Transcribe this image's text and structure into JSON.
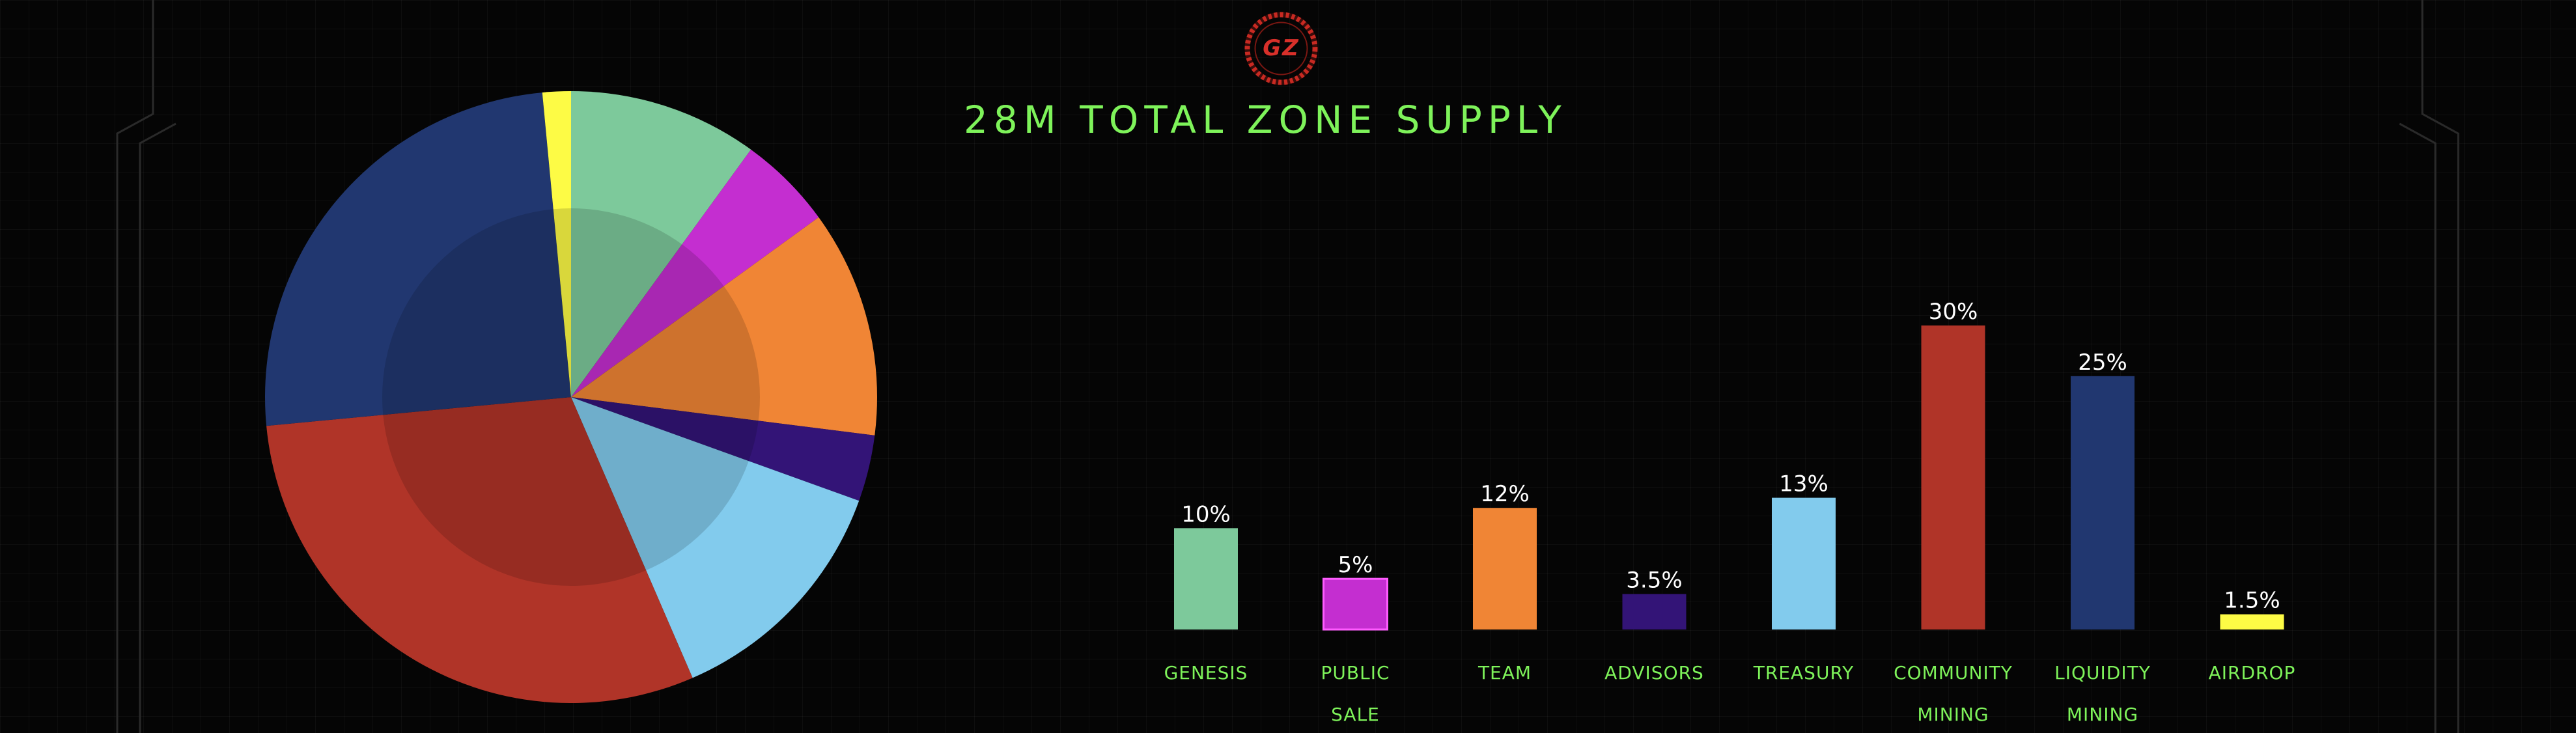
{
  "title": "28M TOTAL ZONE SUPPLY",
  "logo": {
    "text": "GZ",
    "color": "#d8302a"
  },
  "colors": {
    "background": "#050505",
    "title": "#7ef35a",
    "value_label": "#ffffff",
    "category_label": "#7ef35a"
  },
  "chart_data": [
    {
      "type": "pie",
      "slices": [
        {
          "name": "GENESIS",
          "value": 10,
          "color": "#7dc99b"
        },
        {
          "name": "PUBLIC SALE",
          "value": 5,
          "color": "#c42ed0"
        },
        {
          "name": "TEAM",
          "value": 12,
          "color": "#f08535"
        },
        {
          "name": "ADVISORS",
          "value": 3.5,
          "color": "#331477"
        },
        {
          "name": "TREASURY",
          "value": 13,
          "color": "#82cbed"
        },
        {
          "name": "COMMUNITY MINING",
          "value": 30,
          "color": "#b03428"
        },
        {
          "name": "LIQUIDITY MINING",
          "value": 25,
          "color": "#213770"
        },
        {
          "name": "AIRDROP",
          "value": 1.5,
          "color": "#fdfb45"
        }
      ],
      "start_angle": "top",
      "direction": "clockwise"
    },
    {
      "type": "bar",
      "categories": [
        [
          "GENESIS"
        ],
        [
          "PUBLIC",
          "SALE"
        ],
        [
          "TEAM"
        ],
        [
          "ADVISORS"
        ],
        [
          "TREASURY"
        ],
        [
          "COMMUNITY",
          "MINING"
        ],
        [
          "LIQUIDITY",
          "MINING"
        ],
        [
          "AIRDROP"
        ]
      ],
      "values": [
        10,
        5,
        12,
        3.5,
        13,
        30,
        25,
        1.5
      ],
      "value_labels": [
        "10%",
        "5%",
        "12%",
        "3.5%",
        "13%",
        "30%",
        "25%",
        "1.5%"
      ],
      "colors": [
        "#7dc99b",
        "#c42ed0",
        "#f08535",
        "#331477",
        "#82cbed",
        "#b03428",
        "#213770",
        "#fdfb45"
      ],
      "ylim": [
        0,
        30
      ],
      "grid": false,
      "legend": "none"
    }
  ]
}
